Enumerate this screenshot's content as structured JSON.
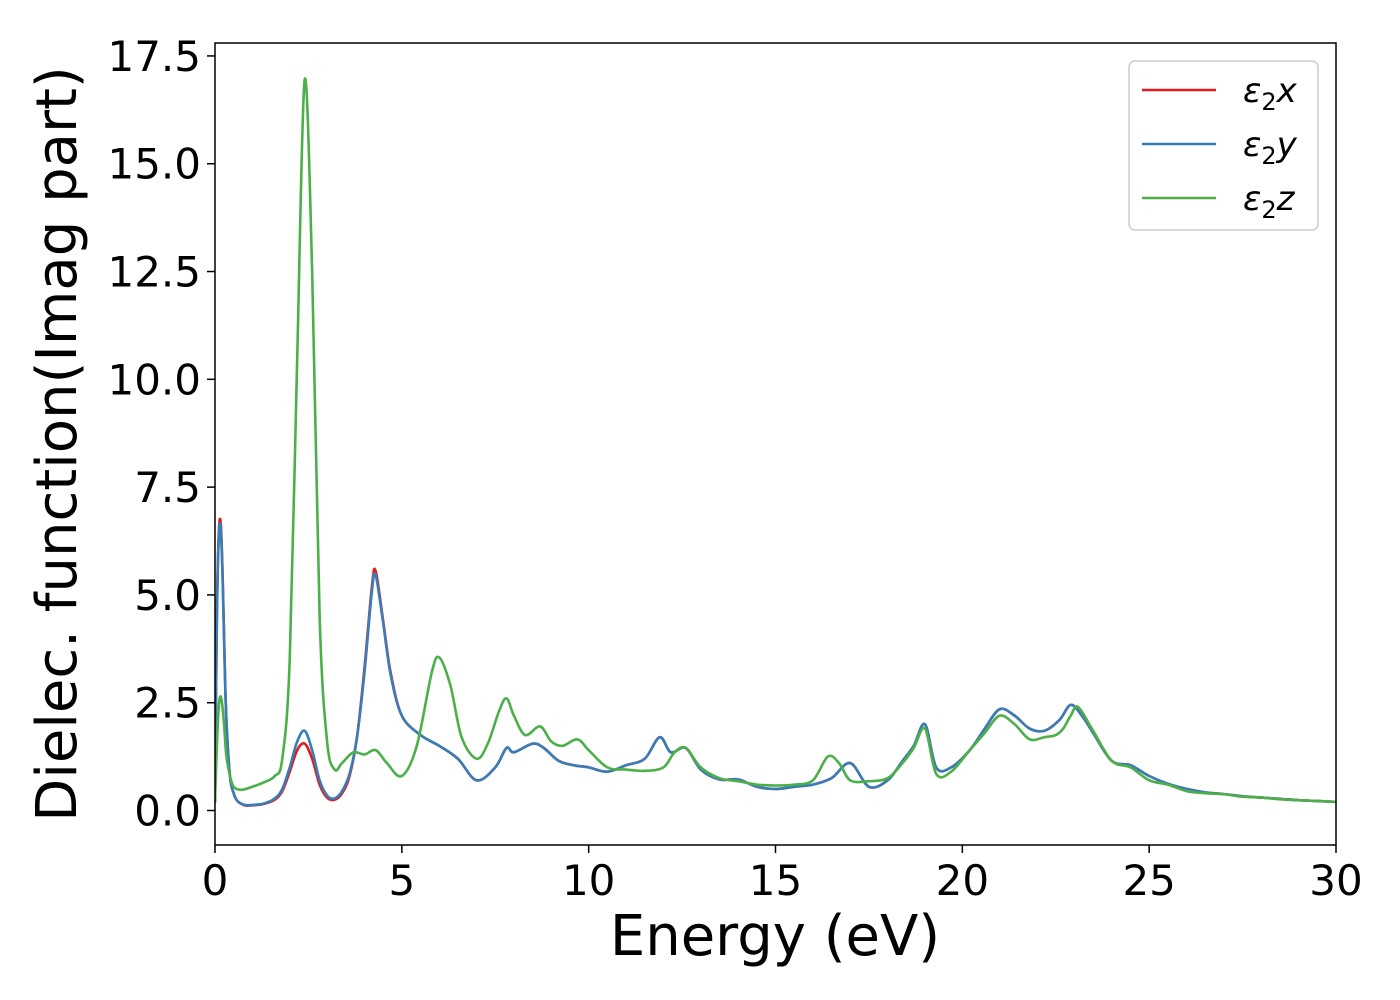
{
  "chart_data": {
    "type": "line",
    "title": "",
    "xlabel": "Energy (eV)",
    "ylabel": "Dielec. function(Imag part)",
    "xlim": [
      0,
      30
    ],
    "ylim": [
      -0.8,
      17.8
    ],
    "xticks": [
      0,
      5,
      10,
      15,
      20,
      25,
      30
    ],
    "xtick_labels": [
      "0",
      "5",
      "10",
      "15",
      "20",
      "25",
      "30"
    ],
    "yticks": [
      0,
      2.5,
      5,
      7.5,
      10,
      12.5,
      15,
      17.5
    ],
    "ytick_labels": [
      "0.0",
      "2.5",
      "5.0",
      "7.5",
      "10.0",
      "12.5",
      "15.0",
      "17.5"
    ],
    "grid": false,
    "legend_position": "top-right",
    "series": [
      {
        "name": "ε2x",
        "base": "ε",
        "sub": "2",
        "var": "x",
        "color": "#e41a1c",
        "x": [
          0,
          0.05,
          0.1,
          0.15,
          0.2,
          0.25,
          0.3,
          0.4,
          0.5,
          0.6,
          0.8,
          1.0,
          1.3,
          1.6,
          1.8,
          2.0,
          2.2,
          2.4,
          2.6,
          2.8,
          3.0,
          3.2,
          3.4,
          3.6,
          3.8,
          4.0,
          4.2,
          4.3,
          4.5,
          4.7,
          5.0,
          5.5,
          6.0,
          6.5,
          7.0,
          7.5,
          7.8,
          8.0,
          8.5,
          8.8,
          9.2,
          9.6,
          10.0,
          10.5,
          11.0,
          11.5,
          11.9,
          12.2,
          12.6,
          13.0,
          13.5,
          14.0,
          14.5,
          15.0,
          15.5,
          16.0,
          16.5,
          17.0,
          17.5,
          18.0,
          18.4,
          18.7,
          19.0,
          19.3,
          19.7,
          20.2,
          20.6,
          21.0,
          21.4,
          21.8,
          22.2,
          22.6,
          22.9,
          23.2,
          23.5,
          24.0,
          24.5,
          25.0,
          25.5,
          26.0,
          26.5,
          27.0,
          27.5,
          28.0,
          28.5,
          29.0,
          29.5,
          30.0
        ],
        "y": [
          0.2,
          4.5,
          6.4,
          6.7,
          5.6,
          3.8,
          2.2,
          0.8,
          0.4,
          0.22,
          0.12,
          0.12,
          0.15,
          0.25,
          0.45,
          0.9,
          1.4,
          1.55,
          1.2,
          0.6,
          0.3,
          0.25,
          0.4,
          0.8,
          1.7,
          3.3,
          5.2,
          5.55,
          4.4,
          3.2,
          2.2,
          1.75,
          1.5,
          1.2,
          0.7,
          1.0,
          1.45,
          1.35,
          1.55,
          1.45,
          1.15,
          1.05,
          1.0,
          0.9,
          1.05,
          1.2,
          1.7,
          1.35,
          1.45,
          0.95,
          0.72,
          0.72,
          0.55,
          0.5,
          0.55,
          0.6,
          0.75,
          1.1,
          0.55,
          0.7,
          1.15,
          1.5,
          2.0,
          1.0,
          1.0,
          1.4,
          1.9,
          2.35,
          2.2,
          1.9,
          1.85,
          2.1,
          2.45,
          2.2,
          1.8,
          1.15,
          1.05,
          0.8,
          0.62,
          0.5,
          0.42,
          0.38,
          0.33,
          0.3,
          0.27,
          0.24,
          0.22,
          0.2
        ]
      },
      {
        "name": "ε2y",
        "base": "ε",
        "sub": "2",
        "var": "y",
        "color": "#377eb8",
        "x": [
          0,
          0.05,
          0.1,
          0.15,
          0.2,
          0.25,
          0.3,
          0.4,
          0.5,
          0.6,
          0.8,
          1.0,
          1.3,
          1.6,
          1.8,
          2.0,
          2.2,
          2.4,
          2.6,
          2.8,
          3.0,
          3.2,
          3.4,
          3.6,
          3.8,
          4.0,
          4.2,
          4.3,
          4.5,
          4.7,
          5.0,
          5.5,
          6.0,
          6.5,
          7.0,
          7.5,
          7.8,
          8.0,
          8.5,
          8.8,
          9.2,
          9.6,
          10.0,
          10.5,
          11.0,
          11.5,
          11.9,
          12.2,
          12.6,
          13.0,
          13.5,
          14.0,
          14.5,
          15.0,
          15.5,
          16.0,
          16.5,
          17.0,
          17.5,
          18.0,
          18.4,
          18.7,
          19.0,
          19.3,
          19.7,
          20.2,
          20.6,
          21.0,
          21.4,
          21.8,
          22.2,
          22.6,
          22.9,
          23.2,
          23.5,
          24.0,
          24.5,
          25.0,
          25.5,
          26.0,
          26.5,
          27.0,
          27.5,
          28.0,
          28.5,
          29.0,
          29.5,
          30.0
        ],
        "y": [
          0.2,
          4.4,
          6.3,
          6.6,
          5.5,
          3.7,
          2.2,
          0.8,
          0.4,
          0.22,
          0.13,
          0.13,
          0.16,
          0.28,
          0.5,
          1.0,
          1.6,
          1.85,
          1.4,
          0.7,
          0.35,
          0.28,
          0.45,
          0.85,
          1.7,
          3.2,
          5.1,
          5.45,
          4.35,
          3.15,
          2.2,
          1.75,
          1.5,
          1.2,
          0.7,
          1.0,
          1.45,
          1.35,
          1.55,
          1.45,
          1.15,
          1.05,
          1.0,
          0.9,
          1.05,
          1.2,
          1.7,
          1.35,
          1.45,
          0.95,
          0.72,
          0.72,
          0.55,
          0.5,
          0.55,
          0.6,
          0.75,
          1.1,
          0.55,
          0.7,
          1.15,
          1.5,
          2.0,
          1.0,
          1.0,
          1.4,
          1.9,
          2.35,
          2.2,
          1.9,
          1.85,
          2.1,
          2.45,
          2.2,
          1.8,
          1.15,
          1.05,
          0.8,
          0.62,
          0.5,
          0.42,
          0.38,
          0.33,
          0.3,
          0.27,
          0.24,
          0.22,
          0.2
        ]
      },
      {
        "name": "ε2z",
        "base": "ε",
        "sub": "2",
        "var": "z",
        "color": "#4daf4a",
        "x": [
          0,
          0.05,
          0.1,
          0.15,
          0.2,
          0.25,
          0.3,
          0.4,
          0.5,
          0.7,
          1.0,
          1.3,
          1.6,
          1.8,
          2.0,
          2.2,
          2.4,
          2.6,
          2.8,
          3.0,
          3.2,
          3.4,
          3.7,
          4.0,
          4.3,
          4.6,
          5.0,
          5.4,
          5.8,
          6.0,
          6.3,
          6.6,
          7.0,
          7.3,
          7.6,
          7.8,
          8.0,
          8.3,
          8.7,
          9.0,
          9.3,
          9.7,
          10.0,
          10.5,
          11.0,
          11.5,
          12.0,
          12.3,
          12.6,
          13.0,
          13.5,
          14.0,
          14.5,
          15.0,
          15.5,
          16.0,
          16.4,
          16.7,
          17.0,
          17.5,
          18.0,
          18.4,
          18.7,
          19.0,
          19.3,
          19.7,
          20.2,
          20.6,
          21.0,
          21.4,
          21.8,
          22.2,
          22.5,
          22.7,
          22.9,
          23.1,
          23.5,
          24.0,
          24.5,
          25.0,
          25.5,
          26.0,
          26.5,
          27.0,
          27.5,
          28.0,
          28.5,
          29.0,
          29.5,
          30.0
        ],
        "y": [
          0.2,
          1.5,
          2.4,
          2.65,
          2.4,
          1.9,
          1.3,
          0.8,
          0.55,
          0.48,
          0.55,
          0.65,
          0.8,
          1.2,
          3.5,
          10.5,
          16.95,
          12.5,
          4.5,
          1.6,
          0.95,
          1.1,
          1.35,
          1.3,
          1.4,
          1.1,
          0.8,
          1.5,
          3.2,
          3.55,
          2.9,
          1.7,
          1.2,
          1.55,
          2.3,
          2.6,
          2.2,
          1.75,
          1.95,
          1.6,
          1.5,
          1.65,
          1.4,
          1.0,
          0.95,
          0.92,
          1.0,
          1.35,
          1.45,
          1.0,
          0.75,
          0.68,
          0.6,
          0.58,
          0.6,
          0.7,
          1.25,
          1.1,
          0.7,
          0.68,
          0.75,
          1.1,
          1.45,
          1.9,
          0.85,
          0.9,
          1.4,
          1.8,
          2.2,
          2.0,
          1.65,
          1.7,
          1.75,
          1.9,
          2.2,
          2.4,
          1.85,
          1.15,
          1.0,
          0.7,
          0.6,
          0.45,
          0.4,
          0.38,
          0.32,
          0.3,
          0.26,
          0.24,
          0.22,
          0.2
        ]
      }
    ]
  }
}
